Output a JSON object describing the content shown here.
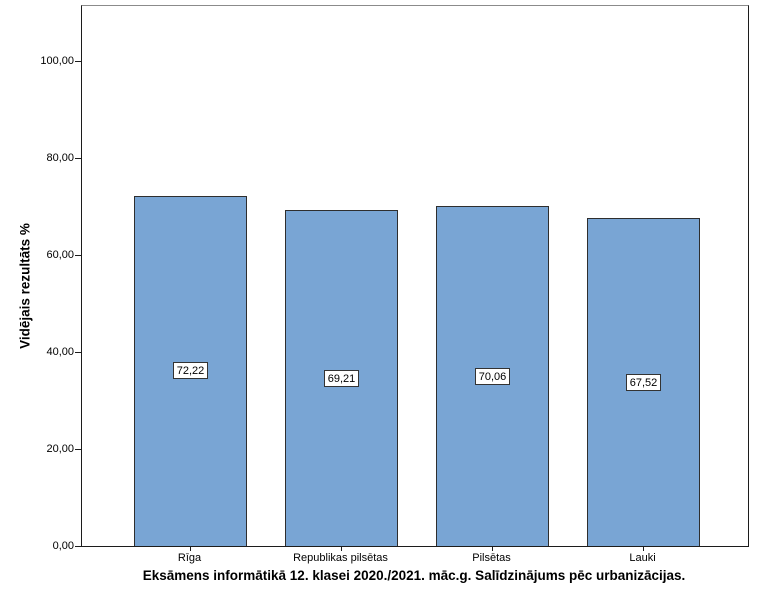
{
  "chart": {
    "title": "Eksāmens informātikā 12. klasei 2020./2021. māc.g. Salīdzinājums pēc urbanizācijas.",
    "y_axis_label": "Vidējais rezultāts %"
  },
  "chart_data": {
    "type": "bar",
    "categories": [
      "Rīga",
      "Republikas pilsētas",
      "Pilsētas",
      "Lauki"
    ],
    "values": [
      72.22,
      69.21,
      70.06,
      67.52
    ],
    "value_labels": [
      "72,22",
      "69,21",
      "70,06",
      "67,52"
    ],
    "title": "Eksāmens informātikā 12. klasei 2020./2021. māc.g. Salīdzinājums pēc urbanizācijas.",
    "xlabel": "",
    "ylabel": "Vidējais rezultāts %",
    "ylim": [
      0,
      111.5
    ],
    "y_ticks": [
      0,
      20,
      40,
      60,
      80,
      100
    ],
    "y_tick_labels": [
      "0,00",
      "20,00",
      "40,00",
      "60,00",
      "80,00",
      "100,00"
    ],
    "grid": false,
    "legend_position": "none",
    "bar_color": "#79A5D4",
    "bar_border_color": "#2e2e2e",
    "frame_color": "#1c1c1c",
    "value_label_background": "#ffffff"
  }
}
